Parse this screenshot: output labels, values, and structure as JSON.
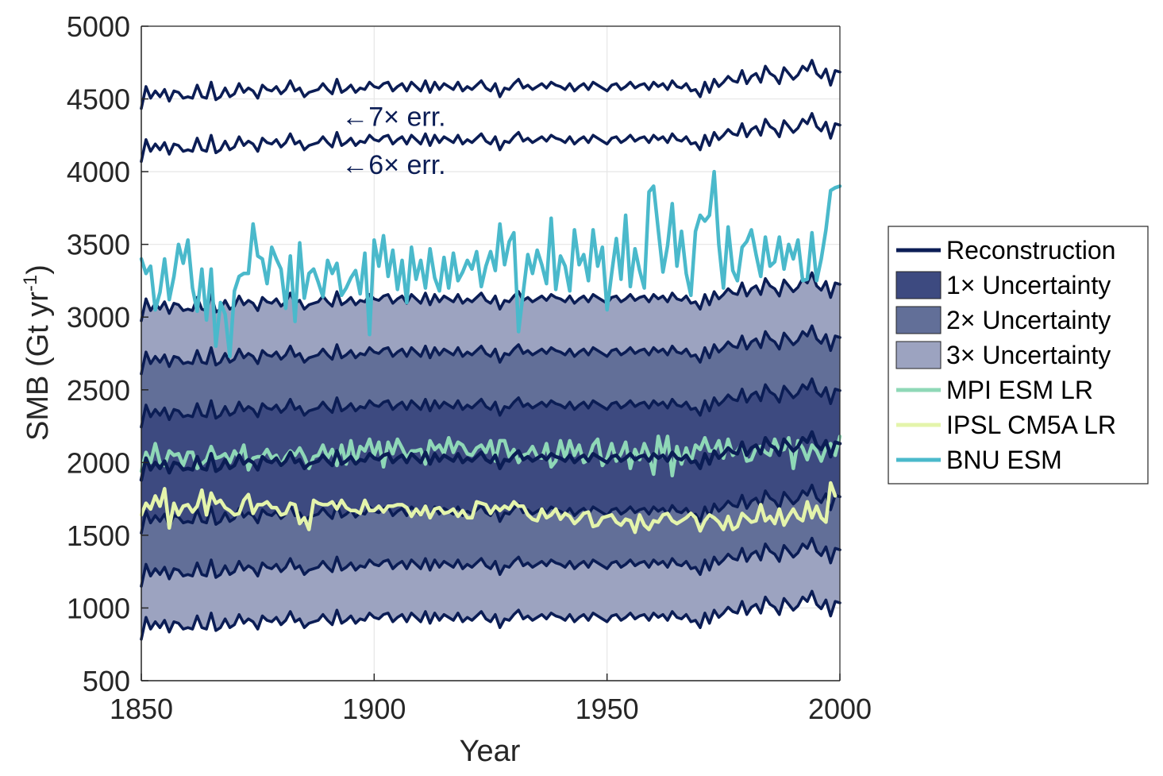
{
  "chart_data": {
    "type": "line",
    "xlabel": "Year",
    "ylabel": "SMB (Gt yr",
    "ylabel_superscript": "-1",
    "ylabel_suffix": ")",
    "xlim": [
      1850,
      2000
    ],
    "ylim": [
      500,
      5000
    ],
    "xticks": [
      1850,
      1900,
      1950,
      2000
    ],
    "xtick_labels": [
      "1850",
      "1900",
      "1950",
      "2000"
    ],
    "yticks": [
      500,
      1000,
      1500,
      2000,
      2500,
      3000,
      3500,
      4000,
      4500,
      5000
    ],
    "ytick_labels": [
      "500",
      "1000",
      "1500",
      "2000",
      "2500",
      "3000",
      "3500",
      "4000",
      "4500",
      "5000"
    ],
    "grid": true,
    "legend_position": "outside-right",
    "years": [
      1850,
      1851,
      1852,
      1853,
      1854,
      1855,
      1856,
      1857,
      1858,
      1859,
      1860,
      1861,
      1862,
      1863,
      1864,
      1865,
      1866,
      1867,
      1868,
      1869,
      1870,
      1871,
      1872,
      1873,
      1874,
      1875,
      1876,
      1877,
      1878,
      1879,
      1880,
      1881,
      1882,
      1883,
      1884,
      1885,
      1886,
      1887,
      1888,
      1889,
      1890,
      1891,
      1892,
      1893,
      1894,
      1895,
      1896,
      1897,
      1898,
      1899,
      1900,
      1901,
      1902,
      1903,
      1904,
      1905,
      1906,
      1907,
      1908,
      1909,
      1910,
      1911,
      1912,
      1913,
      1914,
      1915,
      1916,
      1917,
      1918,
      1919,
      1920,
      1921,
      1922,
      1923,
      1924,
      1925,
      1926,
      1927,
      1928,
      1929,
      1930,
      1931,
      1932,
      1933,
      1934,
      1935,
      1936,
      1937,
      1938,
      1939,
      1940,
      1941,
      1942,
      1943,
      1944,
      1945,
      1946,
      1947,
      1948,
      1949,
      1950,
      1951,
      1952,
      1953,
      1954,
      1955,
      1956,
      1957,
      1958,
      1959,
      1960,
      1961,
      1962,
      1963,
      1964,
      1965,
      1966,
      1967,
      1968,
      1969,
      1970,
      1971,
      1972,
      1973,
      1974,
      1975,
      1976,
      1977,
      1978,
      1979,
      1980,
      1981,
      1982,
      1983,
      1984,
      1985,
      1986,
      1987,
      1988,
      1989,
      1990,
      1991,
      1992,
      1993,
      1994,
      1995,
      1996,
      1997,
      1998,
      1999,
      2000
    ],
    "reconstruction": [
      1880,
      2030,
      1950,
      2000,
      1960,
      2010,
      1930,
      2000,
      1990,
      1950,
      1960,
      1950,
      2040,
      1960,
      1950,
      2060,
      1940,
      1960,
      2020,
      1960,
      1980,
      2050,
      1990,
      2020,
      2000,
      1950,
      2040,
      2010,
      2000,
      2030,
      1980,
      2010,
      2070,
      2000,
      2020,
      1960,
      1990,
      2000,
      2010,
      2050,
      2010,
      1980,
      2080,
      1990,
      2010,
      2040,
      1990,
      2020,
      2010,
      2060,
      2030,
      2020,
      2050,
      2060,
      2000,
      2030,
      2050,
      2000,
      2060,
      2030,
      2000,
      2070,
      1990,
      2060,
      2010,
      2050,
      2030,
      2010,
      2060,
      2000,
      2030,
      2010,
      2040,
      2070,
      2020,
      2000,
      2050,
      1960,
      2020,
      2010,
      2050,
      2080,
      2020,
      2040,
      2010,
      2030,
      2050,
      2020,
      2060,
      2040,
      2030,
      2010,
      2050,
      2000,
      2030,
      2050,
      2010,
      2060,
      2040,
      2020,
      2000,
      2040,
      2050,
      2010,
      2030,
      2060,
      2020,
      2040,
      2050,
      2010,
      2060,
      2030,
      2050,
      2010,
      2070,
      2030,
      2020,
      2050,
      2000,
      2010,
      1960,
      2060,
      1990,
      2080,
      2030,
      2060,
      2100,
      2070,
      2060,
      2140,
      2050,
      2100,
      2120,
      2060,
      2170,
      2120,
      2100,
      2050,
      2160,
      2120,
      2080,
      2110,
      2170,
      2140,
      2210,
      2120,
      2090,
      2150,
      2040,
      2140,
      2130
    ],
    "err_per_sigma": 365,
    "uncertainty_multiples": [
      1,
      2,
      3,
      6,
      7
    ],
    "bands": [
      {
        "name": "1× Uncertainty",
        "sigma": 1,
        "color": "#3d4a80"
      },
      {
        "name": "2× Uncertainty",
        "sigma": 2,
        "color": "#626f98"
      },
      {
        "name": "3× Uncertainty",
        "sigma": 3,
        "color": "#9ca3c0"
      }
    ],
    "annotations": [
      {
        "text": "←7× err.",
        "year": 1893,
        "value": 4380
      },
      {
        "text": "←6× err.",
        "year": 1893,
        "value": 4050
      }
    ],
    "series": [
      {
        "name": "MPI ESM LR",
        "color": "#8fd8b7",
        "values": [
          1940,
          2070,
          2000,
          2130,
          2000,
          1980,
          2080,
          2050,
          2060,
          1980,
          2070,
          2070,
          1960,
          1990,
          2020,
          2110,
          2030,
          2040,
          2060,
          2000,
          2080,
          2030,
          2120,
          1950,
          2030,
          2040,
          2040,
          2090,
          2030,
          2050,
          1980,
          2040,
          2080,
          2050,
          2100,
          2040,
          1960,
          2040,
          2050,
          2120,
          2030,
          2090,
          1980,
          2120,
          1990,
          2150,
          1990,
          2110,
          2080,
          2160,
          2050,
          2140,
          1970,
          2140,
          2060,
          2160,
          2100,
          2030,
          2080,
          2080,
          2090,
          1990,
          2150,
          2090,
          2120,
          2060,
          2170,
          2070,
          2140,
          2120,
          2060,
          2050,
          2100,
          2120,
          2070,
          2150,
          2010,
          2150,
          2150,
          2040,
          2090,
          2000,
          2050,
          2060,
          2110,
          2040,
          2030,
          2130,
          1970,
          2010,
          2150,
          2030,
          2150,
          2050,
          2120,
          2000,
          2020,
          2120,
          2160,
          1980,
          2030,
          2130,
          2010,
          2060,
          2140,
          1960,
          2090,
          2020,
          2130,
          2050,
          1920,
          2180,
          2040,
          2180,
          1910,
          2110,
          1990,
          2100,
          2000,
          2120,
          2090,
          2170,
          2080,
          2080,
          2150,
          2030,
          2160,
          2050,
          2080,
          2130,
          2010,
          2020,
          2100,
          2110,
          2070,
          2050,
          2160,
          2080,
          2090,
          2170,
          1960,
          2150,
          2100,
          2020,
          2120,
          2080,
          2010,
          2100,
          2130,
          2050,
          2180
        ]
      },
      {
        "name": "IPSL CM5A LR",
        "color": "#e4f4ab",
        "values": [
          1640,
          1720,
          1680,
          1770,
          1700,
          1820,
          1550,
          1720,
          1640,
          1700,
          1710,
          1660,
          1700,
          1810,
          1640,
          1790,
          1720,
          1740,
          1690,
          1670,
          1640,
          1650,
          1740,
          1780,
          1650,
          1710,
          1710,
          1730,
          1690,
          1690,
          1640,
          1650,
          1720,
          1710,
          1580,
          1620,
          1540,
          1740,
          1720,
          1710,
          1710,
          1730,
          1680,
          1740,
          1690,
          1670,
          1670,
          1650,
          1740,
          1670,
          1670,
          1700,
          1660,
          1700,
          1700,
          1710,
          1710,
          1690,
          1630,
          1680,
          1640,
          1700,
          1620,
          1680,
          1690,
          1650,
          1660,
          1680,
          1630,
          1670,
          1620,
          1620,
          1730,
          1720,
          1710,
          1650,
          1700,
          1670,
          1700,
          1680,
          1730,
          1700,
          1700,
          1640,
          1610,
          1600,
          1680,
          1620,
          1640,
          1680,
          1610,
          1650,
          1630,
          1580,
          1610,
          1650,
          1660,
          1560,
          1570,
          1620,
          1630,
          1640,
          1590,
          1570,
          1610,
          1600,
          1520,
          1640,
          1570,
          1540,
          1600,
          1590,
          1640,
          1650,
          1600,
          1580,
          1600,
          1620,
          1650,
          1620,
          1530,
          1600,
          1640,
          1620,
          1590,
          1540,
          1630,
          1540,
          1560,
          1650,
          1620,
          1590,
          1600,
          1710,
          1600,
          1630,
          1580,
          1680,
          1570,
          1630,
          1680,
          1620,
          1600,
          1730,
          1620,
          1700,
          1620,
          1590,
          1860,
          1770
        ]
      },
      {
        "name": "BNU ESM",
        "color": "#4ab9cb",
        "values": [
          3400,
          3300,
          3350,
          3050,
          3170,
          3400,
          3120,
          3280,
          3500,
          3370,
          3530,
          3200,
          3040,
          3330,
          2980,
          3330,
          2800,
          3100,
          3020,
          2730,
          3180,
          3280,
          3300,
          3300,
          3640,
          3420,
          3400,
          3230,
          3480,
          3400,
          3330,
          3060,
          3420,
          2970,
          3510,
          3130,
          3300,
          3330,
          3240,
          3140,
          3390,
          3300,
          3370,
          3150,
          3200,
          3270,
          3320,
          3160,
          3440,
          2880,
          3530,
          3350,
          3560,
          3280,
          3460,
          3190,
          3390,
          3100,
          3480,
          3260,
          3390,
          3200,
          3470,
          3270,
          3180,
          3410,
          3200,
          3440,
          3250,
          3310,
          3390,
          3330,
          3450,
          3210,
          3350,
          3450,
          3320,
          3640,
          3360,
          3520,
          3580,
          2900,
          3170,
          3430,
          3300,
          3460,
          3360,
          3230,
          3680,
          3190,
          3420,
          3350,
          3180,
          3600,
          3360,
          3430,
          3250,
          3600,
          3350,
          3480,
          3050,
          3300,
          3540,
          3260,
          3700,
          3210,
          3470,
          3320,
          3200,
          3860,
          3900,
          3600,
          3310,
          3490,
          3780,
          3350,
          3590,
          3300,
          3150,
          3590,
          3700,
          3660,
          3700,
          4000,
          3500,
          3200,
          3620,
          3320,
          3250,
          3480,
          3520,
          3600,
          3430,
          3280,
          3550,
          3350,
          3380,
          3550,
          3330,
          3500,
          3400,
          3530,
          3250,
          3260,
          3580,
          3250,
          3400,
          3600,
          3870,
          3890,
          3900
        ]
      }
    ],
    "legend": [
      {
        "label": "Reconstruction",
        "kind": "line",
        "color": "#0b1d55"
      },
      {
        "label": "1× Uncertainty",
        "kind": "patch",
        "color": "#3d4a80"
      },
      {
        "label": "2× Uncertainty",
        "kind": "patch",
        "color": "#626f98"
      },
      {
        "label": "3× Uncertainty",
        "kind": "patch",
        "color": "#9ca3c0"
      },
      {
        "label": "MPI ESM LR",
        "kind": "line",
        "color": "#8fd8b7"
      },
      {
        "label": "IPSL CM5A LR",
        "kind": "line",
        "color": "#e4f4ab"
      },
      {
        "label": "BNU ESM",
        "kind": "line",
        "color": "#4ab9cb"
      }
    ],
    "line_color": "#0b1d55"
  }
}
